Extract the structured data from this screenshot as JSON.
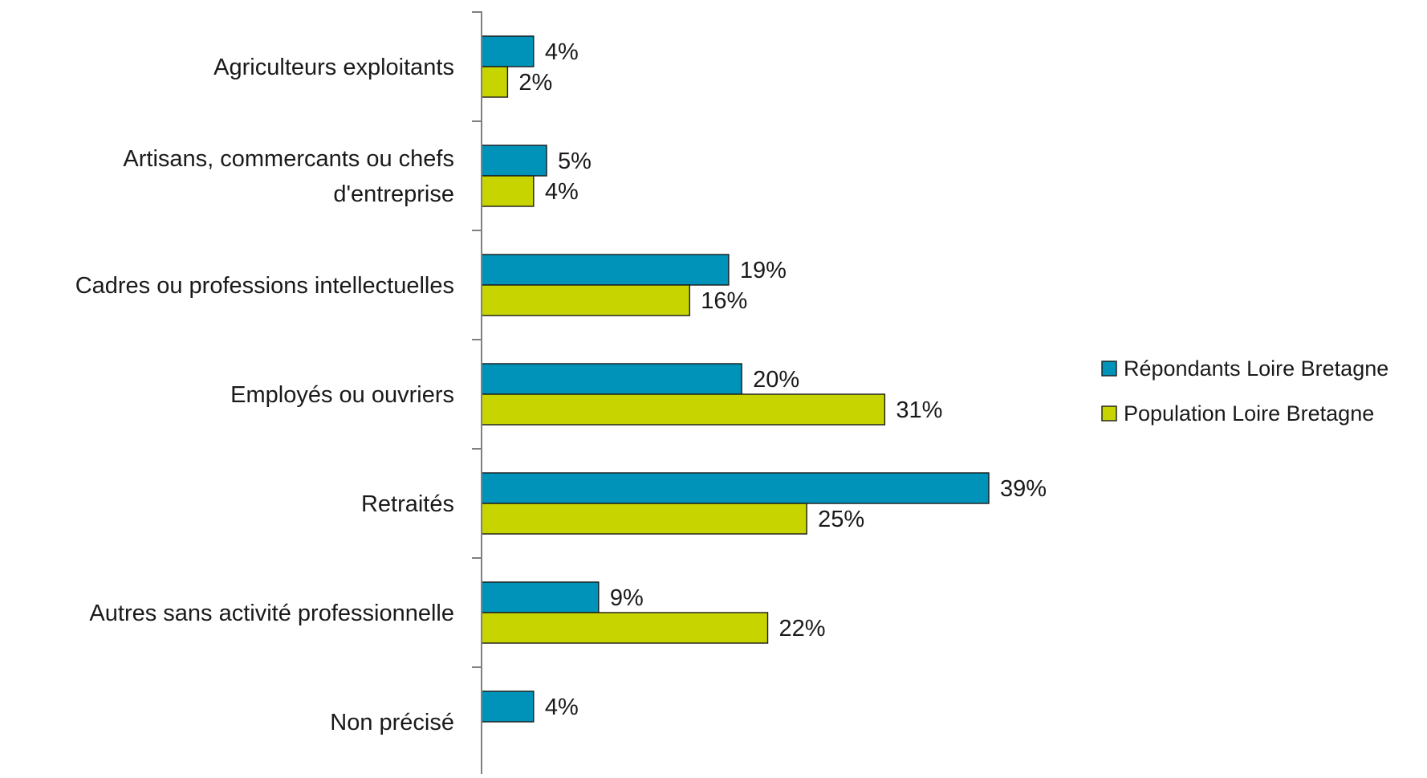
{
  "chart_data": {
    "type": "bar",
    "orientation": "horizontal",
    "categories": [
      [
        "Agriculteurs exploitants"
      ],
      [
        "Artisans, commercants ou chefs",
        "d'entreprise"
      ],
      [
        "Cadres ou professions  intellectuelles"
      ],
      [
        "Employés ou ouvriers"
      ],
      [
        "Retraités"
      ],
      [
        "Autres sans activité professionnelle"
      ],
      [
        "Non précisé"
      ]
    ],
    "series": [
      {
        "name": "Répondants Loire Bretagne",
        "color": "#0093b9",
        "values": [
          4,
          5,
          19,
          20,
          39,
          9,
          4
        ],
        "labels": [
          "4%",
          "5%",
          "19%",
          "20%",
          "39%",
          "9%",
          "4%"
        ]
      },
      {
        "name": "Population Loire Bretagne",
        "color": "#c8d400",
        "values": [
          2,
          4,
          16,
          31,
          25,
          22,
          null
        ],
        "labels": [
          "2%",
          "4%",
          "16%",
          "31%",
          "25%",
          "22%",
          null
        ]
      }
    ],
    "value_unit": "%",
    "xlim": [
      0,
      39
    ],
    "axis_color": "#808080",
    "grid": false,
    "legend_position": "right"
  }
}
